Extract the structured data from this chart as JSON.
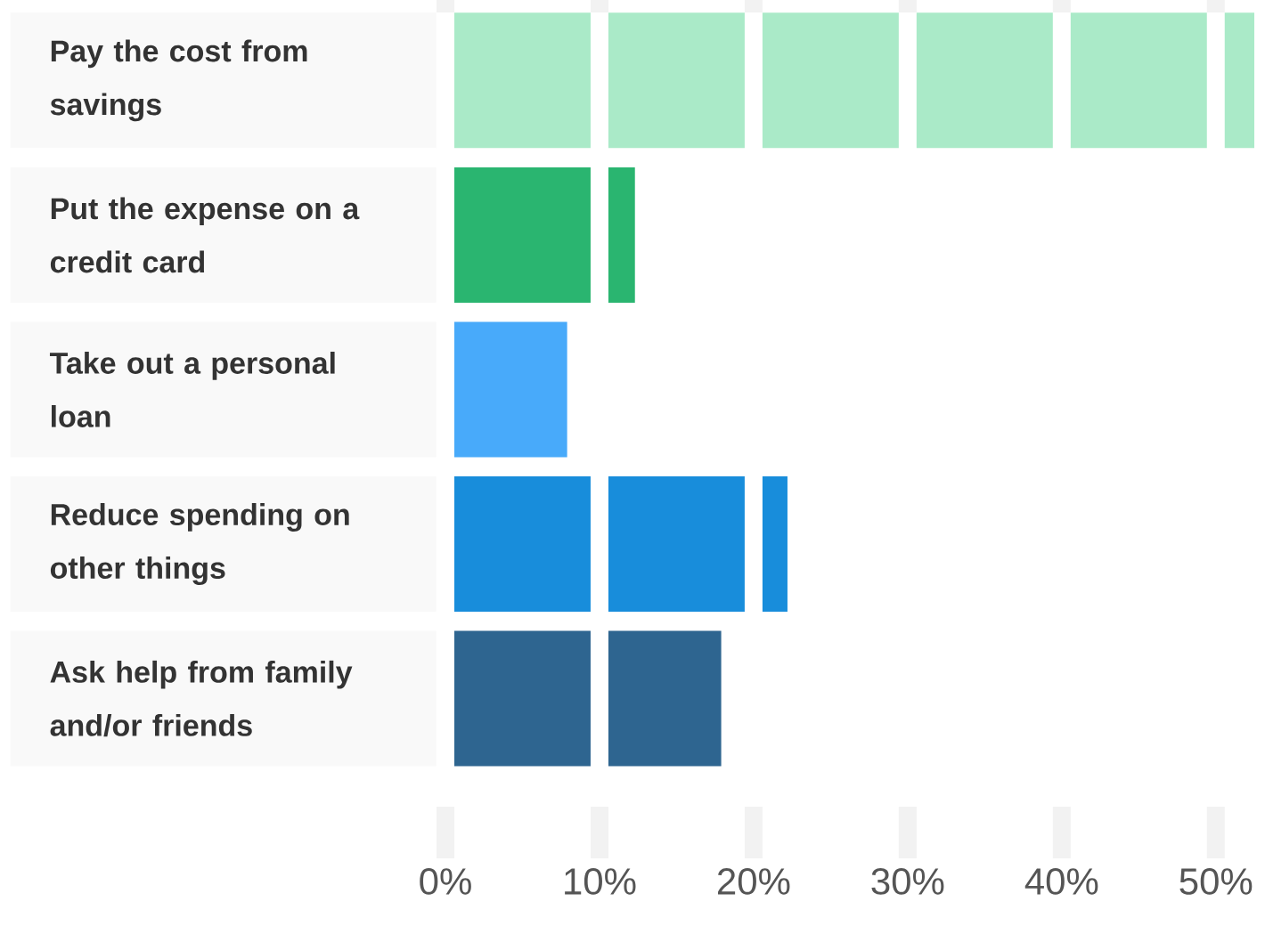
{
  "chart_data": {
    "type": "bar",
    "orientation": "horizontal",
    "categories": [
      "Pay the cost from savings",
      "Put the expense on a credit card",
      "Take out a personal loan",
      "Reduce spending on other things",
      "Ask help from family and/or friends"
    ],
    "values": [
      52.5,
      12.3,
      7.9,
      22.2,
      17.9
    ],
    "colors": [
      "#aaeac8",
      "#2ab570",
      "#48aafa",
      "#188ddb",
      "#2e6590"
    ],
    "xlim": [
      0,
      52.5
    ],
    "xticks": [
      {
        "value": 0,
        "label": "0%"
      },
      {
        "value": 10,
        "label": "10%"
      },
      {
        "value": 20,
        "label": "20%"
      },
      {
        "value": 30,
        "label": "30%"
      },
      {
        "value": 40,
        "label": "40%"
      },
      {
        "value": 50,
        "label": "50%"
      }
    ],
    "grid": "x"
  }
}
